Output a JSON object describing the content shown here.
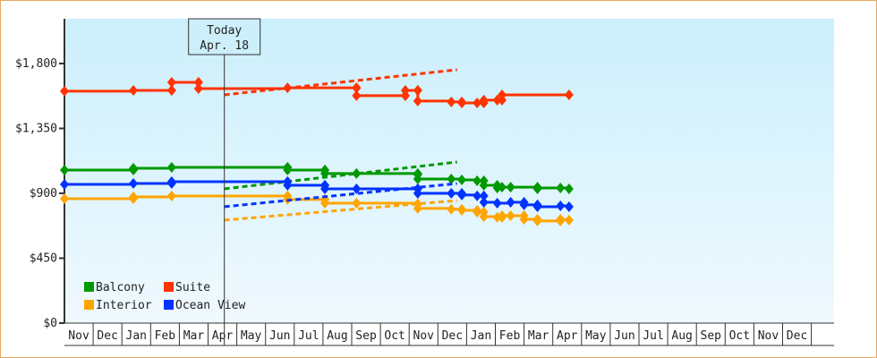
{
  "chart_data": {
    "type": "line",
    "title": "",
    "xlabel": "",
    "ylabel": "",
    "ylim": [
      0,
      2100
    ],
    "yticks": [
      0,
      450,
      900,
      1350,
      1800
    ],
    "ytick_labels": [
      "$0",
      "$450",
      "$900",
      "$1,350",
      "$1,800"
    ],
    "x_tick_labels": [
      "Nov",
      "Dec",
      "Jan",
      "Feb",
      "Mar",
      "Apr",
      "May",
      "Jun",
      "Jul",
      "Aug",
      "Sep",
      "Oct",
      "Nov",
      "Dec",
      "Jan",
      "Feb",
      "Mar",
      "Apr",
      "May",
      "Jun",
      "Jul",
      "Aug",
      "Sep",
      "Oct",
      "Nov",
      "Dec"
    ],
    "grid": false,
    "legend_position": "bottom-left",
    "today_marker": {
      "title": "Today",
      "date_label": "Apr. 18",
      "date": "Apr 18"
    },
    "series": [
      {
        "name": "Balcony",
        "color": "#009900",
        "style": "step",
        "points": [
          [
            "Nov 1",
            1061
          ],
          [
            "Jan 13",
            1074
          ],
          [
            "Feb 23",
            1080
          ],
          [
            "Jun 24",
            1080
          ],
          [
            "Jun 24",
            1061
          ],
          [
            "Aug 3",
            1061
          ],
          [
            "Aug 3",
            1037
          ],
          [
            "Sep 6",
            1037
          ],
          [
            "Nov 10",
            1030
          ],
          [
            "Nov 10",
            999
          ],
          [
            "Dec 15",
            999
          ],
          [
            "Dec 26",
            993
          ],
          [
            "Jan 12",
            987
          ],
          [
            "Jan 19",
            956
          ],
          [
            "Feb 3",
            937
          ],
          [
            "Feb 8",
            943
          ],
          [
            "Feb 17",
            943
          ],
          [
            "Mar 15",
            931
          ],
          [
            "Mar 15",
            937
          ],
          [
            "Apr 9",
            937
          ],
          [
            "Apr 18",
            931
          ]
        ],
        "projection": [
          [
            "Apr 18",
            931
          ],
          [
            "Dec 21",
            1117
          ]
        ]
      },
      {
        "name": "Suite",
        "color": "#ff3300",
        "style": "step",
        "points": [
          [
            "Nov 1",
            1608
          ],
          [
            "Jan 13",
            1614
          ],
          [
            "Feb 23",
            1614
          ],
          [
            "Feb 23",
            1670
          ],
          [
            "Mar 21",
            1670
          ],
          [
            "Mar 21",
            1626
          ],
          [
            "Jun 24",
            1632
          ],
          [
            "Sep 6",
            1632
          ],
          [
            "Sep 6",
            1577
          ],
          [
            "Oct 27",
            1577
          ],
          [
            "Oct 27",
            1614
          ],
          [
            "Nov 10",
            1614
          ],
          [
            "Nov 10",
            1540
          ],
          [
            "Dec 15",
            1534
          ],
          [
            "Dec 26",
            1527
          ],
          [
            "Jan 12",
            1527
          ],
          [
            "Jan 19",
            1546
          ],
          [
            "Feb 3",
            1546
          ],
          [
            "Feb 8",
            1583
          ],
          [
            "Apr 18",
            1583
          ]
        ],
        "projection": [
          [
            "Apr 18",
            1583
          ],
          [
            "Dec 21",
            1757
          ]
        ]
      },
      {
        "name": "Interior",
        "color": "#ffa500",
        "style": "step",
        "points": [
          [
            "Nov 1",
            863
          ],
          [
            "Jan 13",
            875
          ],
          [
            "Feb 23",
            881
          ],
          [
            "Jun 24",
            881
          ],
          [
            "Jun 24",
            857
          ],
          [
            "Aug 3",
            857
          ],
          [
            "Aug 3",
            832
          ],
          [
            "Sep 6",
            832
          ],
          [
            "Nov 10",
            826
          ],
          [
            "Nov 10",
            795
          ],
          [
            "Dec 15",
            789
          ],
          [
            "Dec 26",
            782
          ],
          [
            "Jan 12",
            770
          ],
          [
            "Jan 19",
            739
          ],
          [
            "Feb 3",
            733
          ],
          [
            "Feb 8",
            745
          ],
          [
            "Feb 17",
            745
          ],
          [
            "Mar 1",
            720
          ],
          [
            "Mar 15",
            708
          ],
          [
            "Apr 9",
            720
          ],
          [
            "Apr 18",
            714
          ]
        ],
        "projection": [
          [
            "Apr 18",
            714
          ],
          [
            "Dec 21",
            850
          ]
        ]
      },
      {
        "name": "Ocean View",
        "color": "#0033ff",
        "style": "step",
        "points": [
          [
            "Nov 1",
            962
          ],
          [
            "Jan 13",
            968
          ],
          [
            "Feb 23",
            981
          ],
          [
            "Jun 24",
            981
          ],
          [
            "Jun 24",
            956
          ],
          [
            "Aug 3",
            956
          ],
          [
            "Aug 3",
            931
          ],
          [
            "Sep 6",
            931
          ],
          [
            "Nov 10",
            931
          ],
          [
            "Nov 10",
            900
          ],
          [
            "Dec 15",
            900
          ],
          [
            "Dec 26",
            888
          ],
          [
            "Jan 12",
            882
          ],
          [
            "Jan 19",
            838
          ],
          [
            "Feb 3",
            832
          ],
          [
            "Feb 17",
            838
          ],
          [
            "Mar 1",
            820
          ],
          [
            "Mar 15",
            807
          ],
          [
            "Apr 9",
            813
          ],
          [
            "Apr 18",
            807
          ]
        ],
        "projection": [
          [
            "Apr 18",
            807
          ],
          [
            "Dec 21",
            968
          ]
        ]
      }
    ]
  }
}
